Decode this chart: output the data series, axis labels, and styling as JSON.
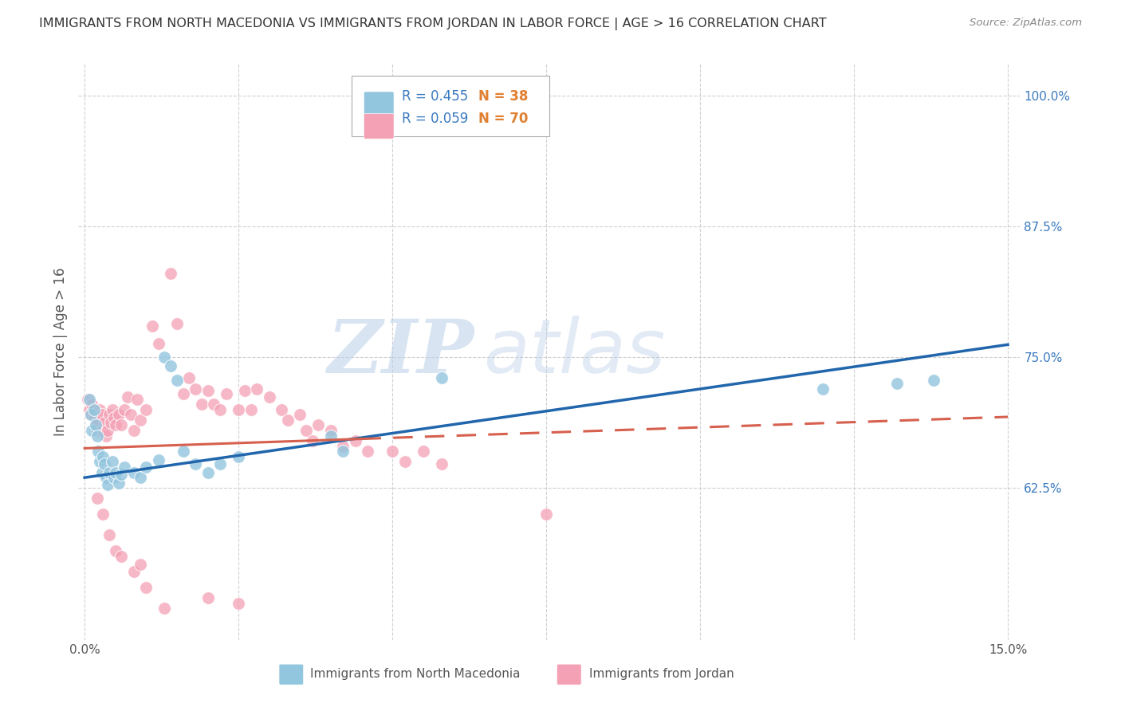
{
  "title": "IMMIGRANTS FROM NORTH MACEDONIA VS IMMIGRANTS FROM JORDAN IN LABOR FORCE | AGE > 16 CORRELATION CHART",
  "source": "Source: ZipAtlas.com",
  "ylabel": "In Labor Force | Age > 16",
  "yaxis_labels": [
    "62.5%",
    "75.0%",
    "87.5%",
    "100.0%"
  ],
  "yaxis_values": [
    0.625,
    0.75,
    0.875,
    1.0
  ],
  "xaxis_ticks": [
    0.0,
    0.025,
    0.05,
    0.075,
    0.1,
    0.125,
    0.15
  ],
  "xaxis_tick_labels": [
    "0.0%",
    "",
    "",
    "",
    "",
    "",
    "15.0%"
  ],
  "blue_color": "#92c5de",
  "pink_color": "#f4a0b5",
  "blue_line_color": "#2166ac",
  "pink_line_color": "#d6604d",
  "blue_scatter": [
    [
      0.0008,
      0.71
    ],
    [
      0.001,
      0.695
    ],
    [
      0.0012,
      0.68
    ],
    [
      0.0015,
      0.7
    ],
    [
      0.0018,
      0.685
    ],
    [
      0.002,
      0.675
    ],
    [
      0.0022,
      0.66
    ],
    [
      0.0025,
      0.65
    ],
    [
      0.0028,
      0.64
    ],
    [
      0.003,
      0.655
    ],
    [
      0.0032,
      0.648
    ],
    [
      0.0035,
      0.635
    ],
    [
      0.0038,
      0.628
    ],
    [
      0.004,
      0.64
    ],
    [
      0.0045,
      0.65
    ],
    [
      0.0048,
      0.635
    ],
    [
      0.005,
      0.64
    ],
    [
      0.0055,
      0.63
    ],
    [
      0.006,
      0.638
    ],
    [
      0.0065,
      0.645
    ],
    [
      0.008,
      0.64
    ],
    [
      0.009,
      0.635
    ],
    [
      0.01,
      0.645
    ],
    [
      0.012,
      0.652
    ],
    [
      0.013,
      0.75
    ],
    [
      0.014,
      0.742
    ],
    [
      0.015,
      0.728
    ],
    [
      0.016,
      0.66
    ],
    [
      0.018,
      0.648
    ],
    [
      0.02,
      0.64
    ],
    [
      0.022,
      0.648
    ],
    [
      0.025,
      0.655
    ],
    [
      0.04,
      0.675
    ],
    [
      0.042,
      0.66
    ],
    [
      0.058,
      0.73
    ],
    [
      0.12,
      0.72
    ],
    [
      0.132,
      0.725
    ],
    [
      0.138,
      0.728
    ]
  ],
  "pink_scatter": [
    [
      0.0005,
      0.71
    ],
    [
      0.0008,
      0.7
    ],
    [
      0.001,
      0.695
    ],
    [
      0.0012,
      0.705
    ],
    [
      0.0015,
      0.695
    ],
    [
      0.0018,
      0.685
    ],
    [
      0.002,
      0.68
    ],
    [
      0.0022,
      0.69
    ],
    [
      0.0025,
      0.7
    ],
    [
      0.0028,
      0.695
    ],
    [
      0.003,
      0.68
    ],
    [
      0.0032,
      0.688
    ],
    [
      0.0035,
      0.675
    ],
    [
      0.0038,
      0.68
    ],
    [
      0.004,
      0.695
    ],
    [
      0.0042,
      0.688
    ],
    [
      0.0045,
      0.7
    ],
    [
      0.0048,
      0.692
    ],
    [
      0.005,
      0.685
    ],
    [
      0.0055,
      0.695
    ],
    [
      0.006,
      0.685
    ],
    [
      0.0065,
      0.7
    ],
    [
      0.007,
      0.712
    ],
    [
      0.0075,
      0.695
    ],
    [
      0.008,
      0.68
    ],
    [
      0.0085,
      0.71
    ],
    [
      0.009,
      0.69
    ],
    [
      0.01,
      0.7
    ],
    [
      0.011,
      0.78
    ],
    [
      0.012,
      0.763
    ],
    [
      0.014,
      0.83
    ],
    [
      0.015,
      0.782
    ],
    [
      0.016,
      0.715
    ],
    [
      0.017,
      0.73
    ],
    [
      0.018,
      0.72
    ],
    [
      0.019,
      0.705
    ],
    [
      0.02,
      0.718
    ],
    [
      0.021,
      0.705
    ],
    [
      0.022,
      0.7
    ],
    [
      0.023,
      0.715
    ],
    [
      0.025,
      0.7
    ],
    [
      0.026,
      0.718
    ],
    [
      0.027,
      0.7
    ],
    [
      0.028,
      0.72
    ],
    [
      0.03,
      0.712
    ],
    [
      0.032,
      0.7
    ],
    [
      0.033,
      0.69
    ],
    [
      0.035,
      0.695
    ],
    [
      0.036,
      0.68
    ],
    [
      0.037,
      0.67
    ],
    [
      0.038,
      0.685
    ],
    [
      0.04,
      0.68
    ],
    [
      0.042,
      0.665
    ],
    [
      0.044,
      0.67
    ],
    [
      0.046,
      0.66
    ],
    [
      0.05,
      0.66
    ],
    [
      0.052,
      0.65
    ],
    [
      0.055,
      0.66
    ],
    [
      0.058,
      0.648
    ],
    [
      0.002,
      0.615
    ],
    [
      0.003,
      0.6
    ],
    [
      0.004,
      0.58
    ],
    [
      0.005,
      0.565
    ],
    [
      0.006,
      0.56
    ],
    [
      0.008,
      0.545
    ],
    [
      0.009,
      0.552
    ],
    [
      0.01,
      0.53
    ],
    [
      0.013,
      0.51
    ],
    [
      0.02,
      0.52
    ],
    [
      0.025,
      0.515
    ],
    [
      0.075,
      0.6
    ]
  ],
  "blue_line_x": [
    0.0,
    0.15
  ],
  "blue_line_y": [
    0.635,
    0.762
  ],
  "pink_line_x": [
    0.0,
    0.15
  ],
  "pink_line_y": [
    0.663,
    0.693
  ],
  "pink_line_dashed_start": 0.045,
  "watermark_zip": "ZIP",
  "watermark_atlas": "atlas",
  "background_color": "#ffffff",
  "grid_color": "#d0d0d0",
  "title_color": "#333333",
  "axis_label_color": "#3a7abf",
  "legend_R_color": "#3a7abf",
  "legend_N_color": "#e08030",
  "ymin": 0.48,
  "ymax": 1.03,
  "xmin": -0.001,
  "xmax": 0.152
}
